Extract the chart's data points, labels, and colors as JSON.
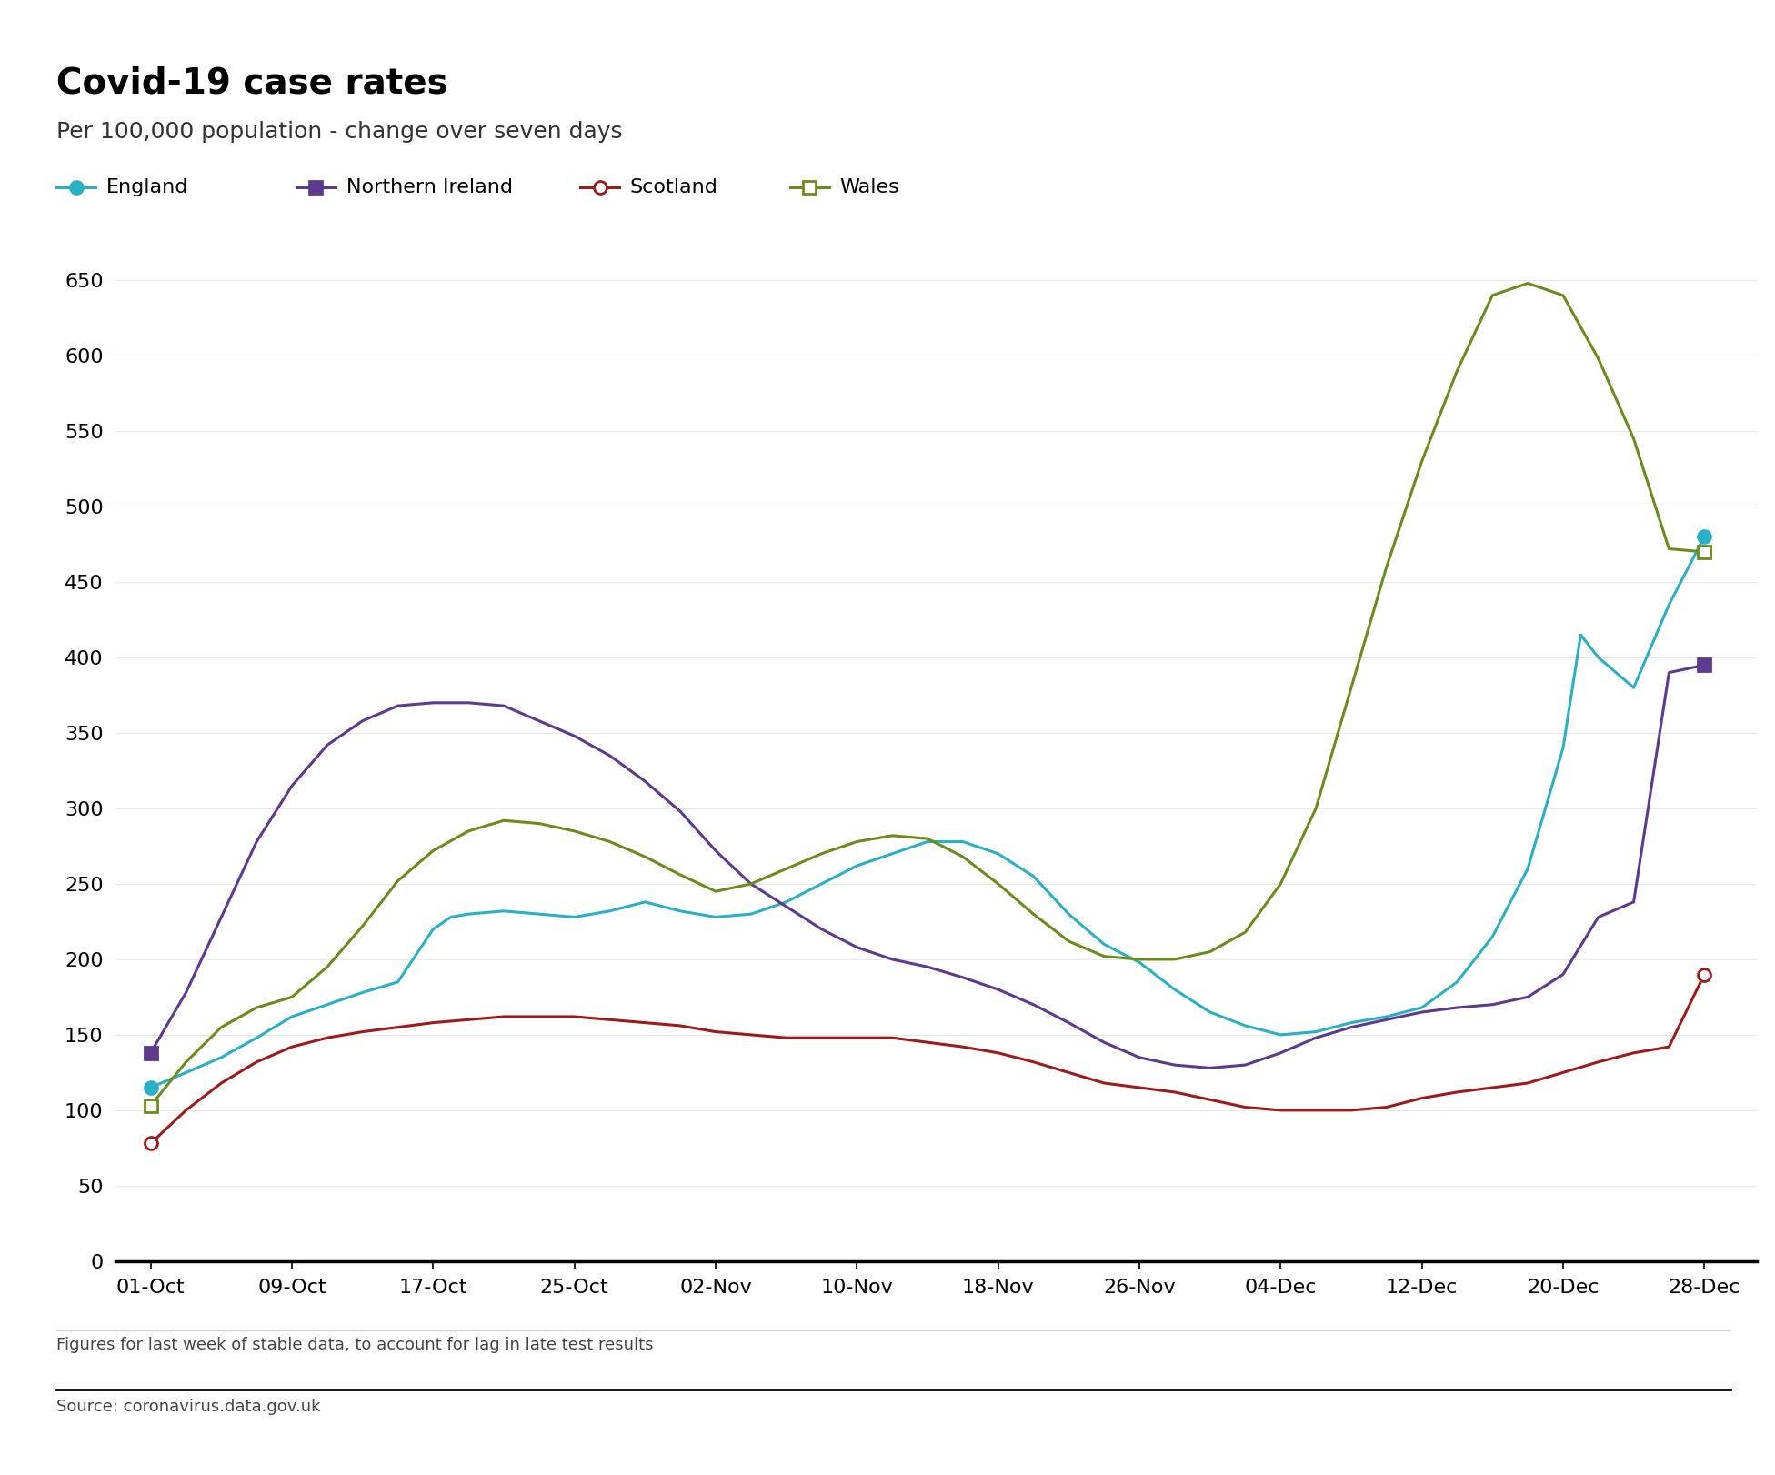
{
  "title": "Covid-19 case rates",
  "subtitle": "Per 100,000 population - change over seven days",
  "footnote": "Figures for last week of stable data, to account for lag in late test results",
  "source": "Source: coronavirus.data.gov.uk",
  "ylim": [
    0,
    650
  ],
  "x_labels": [
    "01-Oct",
    "09-Oct",
    "17-Oct",
    "25-Oct",
    "02-Nov",
    "10-Nov",
    "18-Nov",
    "26-Nov",
    "04-Dec",
    "12-Dec",
    "20-Dec",
    "28-Dec"
  ],
  "x_tick_days": [
    0,
    8,
    16,
    24,
    32,
    40,
    48,
    56,
    64,
    72,
    80,
    88
  ],
  "x_max": 91,
  "England": {
    "color": "#2ab0c5",
    "marker": "o",
    "filled": true,
    "days": [
      0,
      2,
      4,
      6,
      8,
      10,
      12,
      14,
      16,
      17,
      18,
      20,
      22,
      24,
      26,
      28,
      30,
      32,
      34,
      36,
      38,
      40,
      42,
      44,
      46,
      48,
      50,
      52,
      54,
      56,
      58,
      60,
      62,
      64,
      66,
      68,
      70,
      72,
      74,
      76,
      78,
      80,
      81,
      82,
      84,
      86,
      88
    ],
    "values": [
      115,
      125,
      135,
      148,
      162,
      170,
      178,
      185,
      220,
      228,
      230,
      232,
      230,
      228,
      232,
      238,
      232,
      228,
      230,
      238,
      250,
      262,
      270,
      278,
      278,
      270,
      255,
      230,
      210,
      198,
      180,
      165,
      156,
      150,
      152,
      158,
      162,
      168,
      185,
      215,
      260,
      340,
      415,
      400,
      380,
      435,
      480
    ]
  },
  "Northern Ireland": {
    "color": "#5c3a8e",
    "marker": "s",
    "filled": true,
    "days": [
      0,
      2,
      4,
      6,
      8,
      10,
      12,
      14,
      16,
      18,
      20,
      22,
      24,
      26,
      28,
      30,
      32,
      34,
      36,
      38,
      40,
      42,
      44,
      46,
      48,
      50,
      52,
      54,
      56,
      58,
      60,
      62,
      64,
      66,
      68,
      70,
      72,
      74,
      76,
      78,
      80,
      82,
      84,
      86,
      88
    ],
    "values": [
      138,
      178,
      228,
      278,
      315,
      342,
      358,
      368,
      370,
      370,
      368,
      358,
      348,
      335,
      318,
      298,
      272,
      250,
      235,
      220,
      208,
      200,
      195,
      188,
      180,
      170,
      158,
      145,
      135,
      130,
      128,
      130,
      138,
      148,
      155,
      160,
      165,
      168,
      170,
      175,
      190,
      228,
      238,
      390,
      395
    ]
  },
  "Scotland": {
    "color": "#9e1b1b",
    "marker": "o",
    "filled": false,
    "days": [
      0,
      2,
      4,
      6,
      8,
      10,
      12,
      14,
      16,
      18,
      20,
      22,
      24,
      26,
      28,
      30,
      32,
      34,
      36,
      38,
      40,
      42,
      44,
      46,
      48,
      50,
      52,
      54,
      56,
      58,
      60,
      62,
      64,
      66,
      68,
      70,
      72,
      74,
      76,
      78,
      80,
      82,
      84,
      86,
      88
    ],
    "values": [
      78,
      100,
      118,
      132,
      142,
      148,
      152,
      155,
      158,
      160,
      162,
      162,
      162,
      160,
      158,
      156,
      152,
      150,
      148,
      148,
      148,
      148,
      145,
      142,
      138,
      132,
      125,
      118,
      115,
      112,
      107,
      102,
      100,
      100,
      100,
      102,
      108,
      112,
      115,
      118,
      125,
      132,
      138,
      142,
      190
    ]
  },
  "Wales": {
    "color": "#6b8c1a",
    "marker": "s",
    "filled": false,
    "days": [
      0,
      2,
      4,
      6,
      8,
      10,
      12,
      14,
      16,
      18,
      20,
      22,
      24,
      26,
      28,
      30,
      32,
      34,
      36,
      38,
      40,
      42,
      44,
      46,
      48,
      50,
      52,
      54,
      56,
      58,
      60,
      62,
      64,
      66,
      68,
      70,
      72,
      74,
      76,
      78,
      80,
      82,
      84,
      86,
      88
    ],
    "values": [
      103,
      132,
      155,
      168,
      175,
      195,
      222,
      252,
      272,
      285,
      292,
      290,
      285,
      278,
      268,
      256,
      245,
      250,
      260,
      270,
      278,
      282,
      280,
      268,
      250,
      230,
      212,
      202,
      200,
      200,
      205,
      218,
      250,
      300,
      380,
      460,
      530,
      590,
      640,
      648,
      640,
      598,
      545,
      472,
      470
    ]
  }
}
